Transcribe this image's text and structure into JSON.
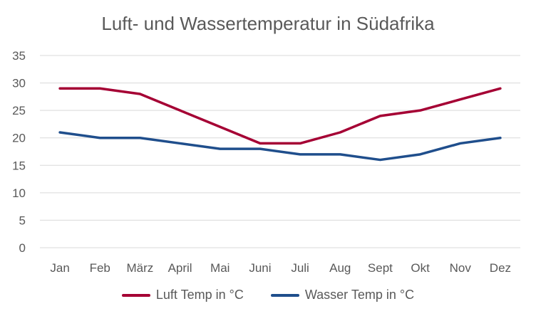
{
  "chart_data": {
    "type": "line",
    "title": "Luft- und Wassertemperatur in Südafrika",
    "categories": [
      "Jan",
      "Feb",
      "März",
      "April",
      "Mai",
      "Juni",
      "Juli",
      "Aug",
      "Sept",
      "Okt",
      "Nov",
      "Dez"
    ],
    "ylim": [
      0,
      35
    ],
    "yticks": [
      0,
      5,
      10,
      15,
      20,
      25,
      30,
      35
    ],
    "grid": true,
    "legend_position": "bottom",
    "series": [
      {
        "name": "Luft Temp in °C",
        "color": "#A50034",
        "values": [
          29,
          29,
          28,
          25,
          22,
          19,
          19,
          21,
          24,
          25,
          27,
          29
        ]
      },
      {
        "name": "Wasser Temp in °C",
        "color": "#1F4E8C",
        "values": [
          21,
          20,
          20,
          19,
          18,
          18,
          17,
          17,
          16,
          17,
          19,
          20
        ]
      }
    ]
  }
}
